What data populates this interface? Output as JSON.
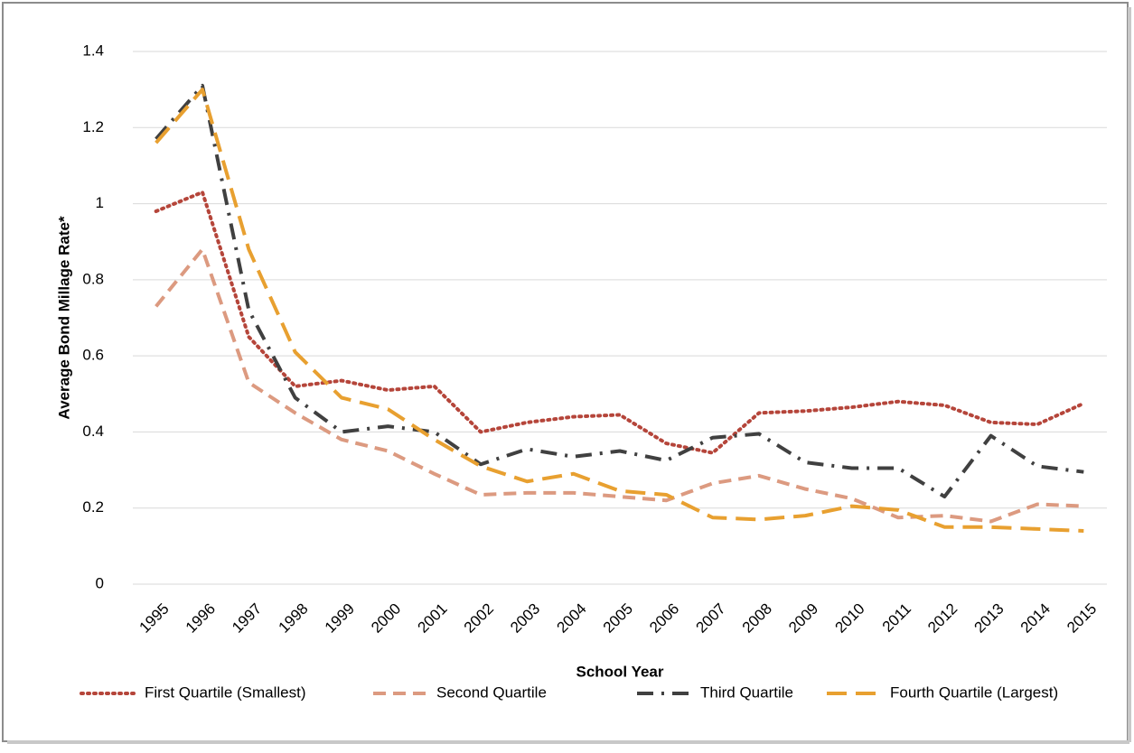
{
  "chart_data": {
    "type": "line",
    "y_label": "Average Bond Millage Rate*",
    "x_label": "School Year",
    "categories": [
      "1995",
      "1996",
      "1997",
      "1998",
      "1999",
      "2000",
      "2001",
      "2002",
      "2003",
      "2004",
      "2005",
      "2006",
      "2007",
      "2008",
      "2009",
      "2010",
      "2011",
      "2012",
      "2013",
      "2014",
      "2015"
    ],
    "series": [
      {
        "name": "First Quartile (Smallest)",
        "color": "#b5453a",
        "dash": "dotted",
        "values": [
          0.98,
          1.03,
          0.65,
          0.52,
          0.535,
          0.51,
          0.52,
          0.4,
          0.425,
          0.44,
          0.445,
          0.37,
          0.345,
          0.45,
          0.455,
          0.465,
          0.48,
          0.47,
          0.425,
          0.42,
          0.475
        ]
      },
      {
        "name": "Second Quartile",
        "color": "#dc9a80",
        "dash": "dashed",
        "values": [
          0.73,
          0.88,
          0.53,
          0.45,
          0.38,
          0.35,
          0.29,
          0.235,
          0.24,
          0.24,
          0.23,
          0.22,
          0.265,
          0.285,
          0.25,
          0.225,
          0.175,
          0.18,
          0.165,
          0.21,
          0.205
        ]
      },
      {
        "name": "Third Quartile",
        "color": "#404040",
        "dash": "dashdot",
        "values": [
          1.17,
          1.31,
          0.72,
          0.49,
          0.4,
          0.415,
          0.4,
          0.315,
          0.355,
          0.335,
          0.35,
          0.325,
          0.385,
          0.395,
          0.32,
          0.305,
          0.305,
          0.23,
          0.39,
          0.31,
          0.295
        ]
      },
      {
        "name": "Fourth Quartile (Largest)",
        "color": "#e8a030",
        "dash": "longdash",
        "values": [
          1.16,
          1.3,
          0.88,
          0.61,
          0.49,
          0.46,
          0.38,
          0.31,
          0.27,
          0.29,
          0.245,
          0.235,
          0.175,
          0.17,
          0.18,
          0.205,
          0.195,
          0.15,
          0.15,
          0.145,
          0.14
        ]
      }
    ],
    "ylim": [
      0,
      1.4
    ],
    "yticks": [
      0,
      0.2,
      0.4,
      0.6,
      0.8,
      1,
      1.2,
      1.4
    ],
    "grid": true,
    "legend": "bottom"
  }
}
